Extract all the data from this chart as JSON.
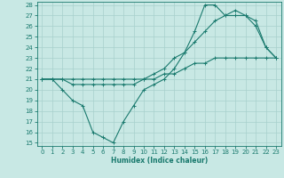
{
  "line1_x": [
    0,
    1,
    2,
    3,
    4,
    5,
    6,
    7,
    8,
    9,
    10,
    11,
    12,
    13,
    14,
    15,
    16,
    17,
    18,
    19,
    20,
    21,
    22,
    23
  ],
  "line1_y": [
    21.0,
    21.0,
    21.0,
    20.5,
    20.5,
    20.5,
    20.5,
    20.5,
    20.5,
    20.5,
    21.0,
    21.5,
    22.0,
    23.0,
    23.5,
    24.5,
    25.5,
    26.5,
    27.0,
    27.0,
    27.0,
    26.5,
    24.0,
    23.0
  ],
  "line2_x": [
    0,
    1,
    2,
    3,
    4,
    5,
    6,
    7,
    8,
    9,
    10,
    11,
    12,
    13,
    14,
    15,
    16,
    17,
    18,
    19,
    20,
    21,
    22,
    23
  ],
  "line2_y": [
    21.0,
    21.0,
    21.0,
    21.0,
    21.0,
    21.0,
    21.0,
    21.0,
    21.0,
    21.0,
    21.0,
    21.0,
    21.5,
    21.5,
    22.0,
    22.5,
    22.5,
    23.0,
    23.0,
    23.0,
    23.0,
    23.0,
    23.0,
    23.0
  ],
  "line3_x": [
    0,
    1,
    2,
    3,
    4,
    5,
    6,
    7,
    8,
    9,
    10,
    11,
    12,
    13,
    14,
    15,
    16,
    17,
    18,
    19,
    20,
    21,
    22,
    23
  ],
  "line3_y": [
    21.0,
    21.0,
    20.0,
    19.0,
    18.5,
    16.0,
    15.5,
    15.0,
    17.0,
    18.5,
    20.0,
    20.5,
    21.0,
    22.0,
    23.5,
    25.5,
    28.0,
    28.0,
    27.0,
    27.5,
    27.0,
    26.0,
    24.0,
    23.0
  ],
  "line_color": "#1a7a6e",
  "bg_color": "#c8e8e4",
  "grid_color": "#a8d0cc",
  "xlabel": "Humidex (Indice chaleur)",
  "ylim_min": 15,
  "ylim_max": 28,
  "xlim_min": 0,
  "xlim_max": 23,
  "yticks": [
    15,
    16,
    17,
    18,
    19,
    20,
    21,
    22,
    23,
    24,
    25,
    26,
    27,
    28
  ],
  "xticks": [
    0,
    1,
    2,
    3,
    4,
    5,
    6,
    7,
    8,
    9,
    10,
    11,
    12,
    13,
    14,
    15,
    16,
    17,
    18,
    19,
    20,
    21,
    22,
    23
  ],
  "markersize": 3,
  "linewidth": 0.8,
  "tick_fontsize": 5.0,
  "xlabel_fontsize": 5.5
}
